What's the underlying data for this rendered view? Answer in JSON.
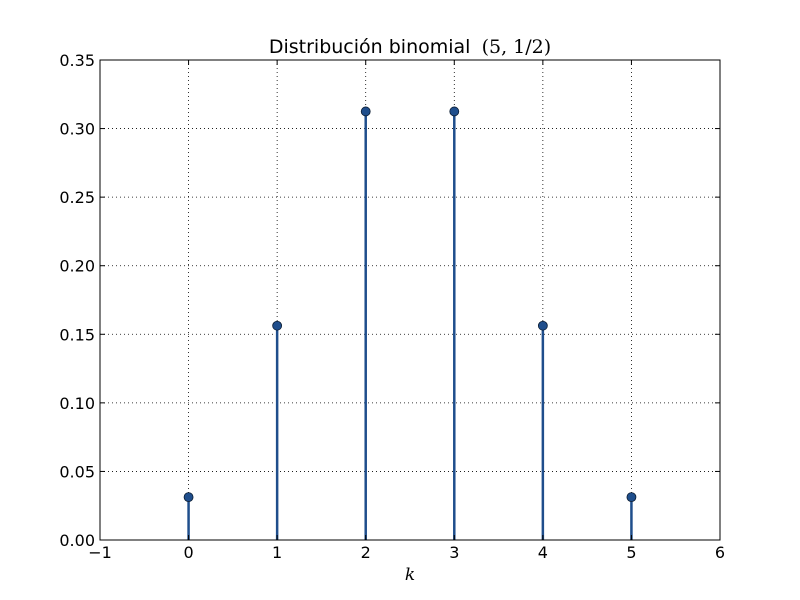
{
  "chart_data": {
    "type": "stem",
    "title": "Distribución binomial",
    "title_math": "(5, 1/2)",
    "xlabel": "k",
    "ylabel": "",
    "xlim": [
      -1,
      6
    ],
    "ylim": [
      0,
      0.35
    ],
    "xticks": [
      -1,
      0,
      1,
      2,
      3,
      4,
      5,
      6
    ],
    "xtick_labels": [
      "−1",
      "0",
      "1",
      "2",
      "3",
      "4",
      "5",
      "6"
    ],
    "yticks": [
      0.0,
      0.05,
      0.1,
      0.15,
      0.2,
      0.25,
      0.3,
      0.35
    ],
    "ytick_labels": [
      "0.00",
      "0.05",
      "0.10",
      "0.15",
      "0.20",
      "0.25",
      "0.30",
      "0.35"
    ],
    "grid": true,
    "series": [
      {
        "x": [
          0,
          1,
          2,
          3,
          4,
          5
        ],
        "values": [
          0.03125,
          0.15625,
          0.3125,
          0.3125,
          0.15625,
          0.03125
        ],
        "color": "#1f4e8c"
      }
    ]
  }
}
